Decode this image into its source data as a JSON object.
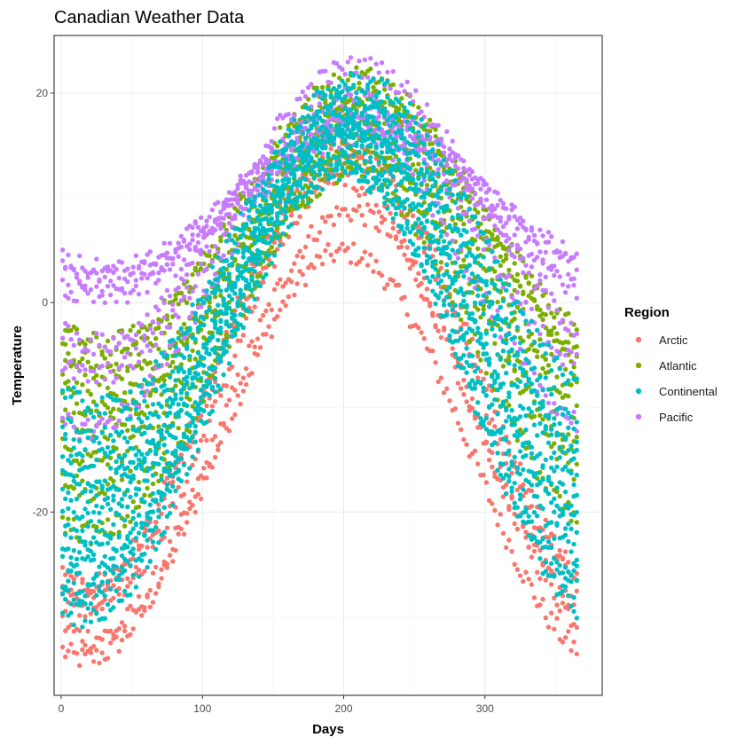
{
  "chart_data": {
    "type": "scatter",
    "title": "Canadian Weather Data",
    "xlabel": "Days",
    "ylabel": "Temperature",
    "xlim": [
      -5,
      383
    ],
    "ylim": [
      -37.5,
      25.5
    ],
    "xticks": [
      0,
      100,
      200,
      300
    ],
    "yticks": [
      -20,
      0,
      20
    ],
    "grid": true,
    "legend": {
      "title": "Region",
      "placement": "right"
    },
    "x_domain": [
      1,
      365
    ],
    "series": [
      {
        "name": "Arctic",
        "color": "#F8766D",
        "stations": [
          {
            "winter_low": -34.0,
            "summer_high": 4.8,
            "peak_day": 200
          },
          {
            "winter_low": -32.0,
            "summer_high": 8.7,
            "peak_day": 205
          },
          {
            "winter_low": -28.0,
            "summer_high": 13.5,
            "peak_day": 208
          },
          {
            "winter_low": -27.0,
            "summer_high": 14.5,
            "peak_day": 200
          },
          {
            "winter_low": -29.0,
            "summer_high": 12.0,
            "peak_day": 195
          }
        ]
      },
      {
        "name": "Atlantic",
        "color": "#7CAE00",
        "stations": [
          {
            "winter_low": -4.0,
            "summer_high": 19.5,
            "peak_day": 212
          },
          {
            "winter_low": -6.0,
            "summer_high": 21.5,
            "peak_day": 210
          },
          {
            "winter_low": -8.0,
            "summer_high": 19.0,
            "peak_day": 215
          },
          {
            "winter_low": -10.0,
            "summer_high": 18.0,
            "peak_day": 212
          },
          {
            "winter_low": -12.0,
            "summer_high": 17.0,
            "peak_day": 210
          },
          {
            "winter_low": -15.0,
            "summer_high": 15.5,
            "peak_day": 208
          },
          {
            "winter_low": -18.0,
            "summer_high": 14.0,
            "peak_day": 210
          },
          {
            "winter_low": -22.0,
            "summer_high": 12.5,
            "peak_day": 205
          }
        ]
      },
      {
        "name": "Continental",
        "color": "#00BFC4",
        "stations": [
          {
            "winter_low": -10.0,
            "summer_high": 21.0,
            "peak_day": 210
          },
          {
            "winter_low": -13.0,
            "summer_high": 20.0,
            "peak_day": 208
          },
          {
            "winter_low": -15.0,
            "summer_high": 19.0,
            "peak_day": 205
          },
          {
            "winter_low": -17.0,
            "summer_high": 18.0,
            "peak_day": 210
          },
          {
            "winter_low": -18.0,
            "summer_high": 17.0,
            "peak_day": 205
          },
          {
            "winter_low": -20.0,
            "summer_high": 16.0,
            "peak_day": 200
          },
          {
            "winter_low": -22.0,
            "summer_high": 17.5,
            "peak_day": 202
          },
          {
            "winter_low": -24.0,
            "summer_high": 16.0,
            "peak_day": 205
          },
          {
            "winter_low": -25.0,
            "summer_high": 15.0,
            "peak_day": 200
          },
          {
            "winter_low": -27.0,
            "summer_high": 14.0,
            "peak_day": 200
          },
          {
            "winter_low": -28.0,
            "summer_high": 13.0,
            "peak_day": 198
          },
          {
            "winter_low": -30.0,
            "summer_high": 12.5,
            "peak_day": 200
          }
        ]
      },
      {
        "name": "Pacific",
        "color": "#C77CFF",
        "stations": [
          {
            "winter_low": 3.0,
            "summer_high": 17.0,
            "peak_day": 215
          },
          {
            "winter_low": 2.0,
            "summer_high": 18.0,
            "peak_day": 212
          },
          {
            "winter_low": 0.5,
            "summer_high": 16.0,
            "peak_day": 210
          },
          {
            "winter_low": -4.0,
            "summer_high": 22.5,
            "peak_day": 210
          },
          {
            "winter_low": -7.0,
            "summer_high": 19.5,
            "peak_day": 205
          },
          {
            "winter_low": -12.0,
            "summer_high": 17.0,
            "peak_day": 200
          }
        ]
      }
    ]
  }
}
